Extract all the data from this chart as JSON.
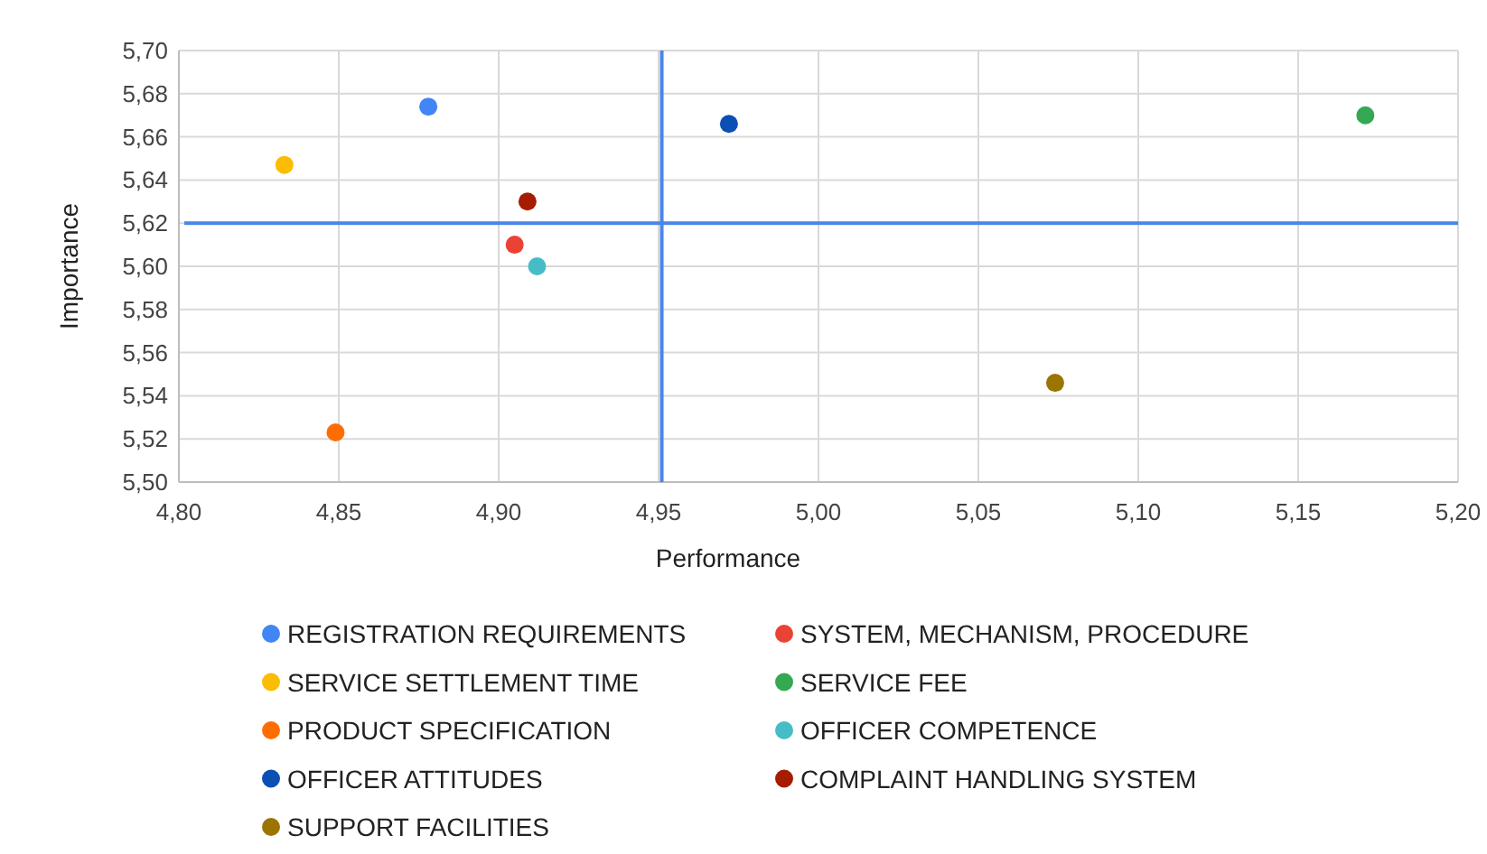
{
  "chart_data": {
    "type": "scatter",
    "xlabel": "Performance",
    "ylabel": "Importance",
    "xlim": [
      4.8,
      5.2
    ],
    "ylim": [
      5.5,
      5.7
    ],
    "xticks": [
      {
        "value": 4.8,
        "label": "4,80"
      },
      {
        "value": 4.85,
        "label": "4,85"
      },
      {
        "value": 4.9,
        "label": "4,90"
      },
      {
        "value": 4.95,
        "label": "4,95"
      },
      {
        "value": 5.0,
        "label": "5,00"
      },
      {
        "value": 5.05,
        "label": "5,05"
      },
      {
        "value": 5.1,
        "label": "5,10"
      },
      {
        "value": 5.15,
        "label": "5,15"
      },
      {
        "value": 5.2,
        "label": "5,20"
      }
    ],
    "yticks": [
      {
        "value": 5.5,
        "label": "5,50"
      },
      {
        "value": 5.52,
        "label": "5,52"
      },
      {
        "value": 5.54,
        "label": "5,54"
      },
      {
        "value": 5.56,
        "label": "5,56"
      },
      {
        "value": 5.58,
        "label": "5,58"
      },
      {
        "value": 5.6,
        "label": "5,60"
      },
      {
        "value": 5.62,
        "label": "5,62"
      },
      {
        "value": 5.64,
        "label": "5,64"
      },
      {
        "value": 5.66,
        "label": "5,66"
      },
      {
        "value": 5.68,
        "label": "5,68"
      },
      {
        "value": 5.7,
        "label": "5,70"
      }
    ],
    "grid": true,
    "legend": "bottom",
    "marker": "circle",
    "ref_lines": [
      {
        "axis": "x",
        "value": 4.951,
        "color": "#4a86e8"
      },
      {
        "axis": "y",
        "value": 5.62,
        "color": "#4a86e8"
      }
    ],
    "series": [
      {
        "name": "REGISTRATION REQUIREMENTS",
        "color": "#4285f4",
        "x": [
          4.878
        ],
        "values": [
          5.674
        ]
      },
      {
        "name": "SYSTEM, MECHANISM, PROCEDURE",
        "color": "#ea4335",
        "x": [
          4.905
        ],
        "values": [
          5.61
        ]
      },
      {
        "name": "SERVICE SETTLEMENT TIME",
        "color": "#fbbc04",
        "x": [
          4.833
        ],
        "values": [
          5.647
        ]
      },
      {
        "name": "SERVICE FEE",
        "color": "#34a853",
        "x": [
          5.171
        ],
        "values": [
          5.67
        ]
      },
      {
        "name": "PRODUCT SPECIFICATION",
        "color": "#ff6d01",
        "x": [
          4.849
        ],
        "values": [
          5.523
        ]
      },
      {
        "name": "OFFICER COMPETENCE",
        "color": "#46bdc6",
        "x": [
          4.912
        ],
        "values": [
          5.6
        ]
      },
      {
        "name": "OFFICER ATTITUDES",
        "color": "#0b4fb4",
        "x": [
          4.972
        ],
        "values": [
          5.666
        ]
      },
      {
        "name": "COMPLAINT HANDLING SYSTEM",
        "color": "#a61c00",
        "x": [
          4.909
        ],
        "values": [
          5.63
        ]
      },
      {
        "name": "SUPPORT FACILITIES",
        "color": "#9c7400",
        "x": [
          5.074
        ],
        "values": [
          5.546
        ]
      }
    ]
  }
}
